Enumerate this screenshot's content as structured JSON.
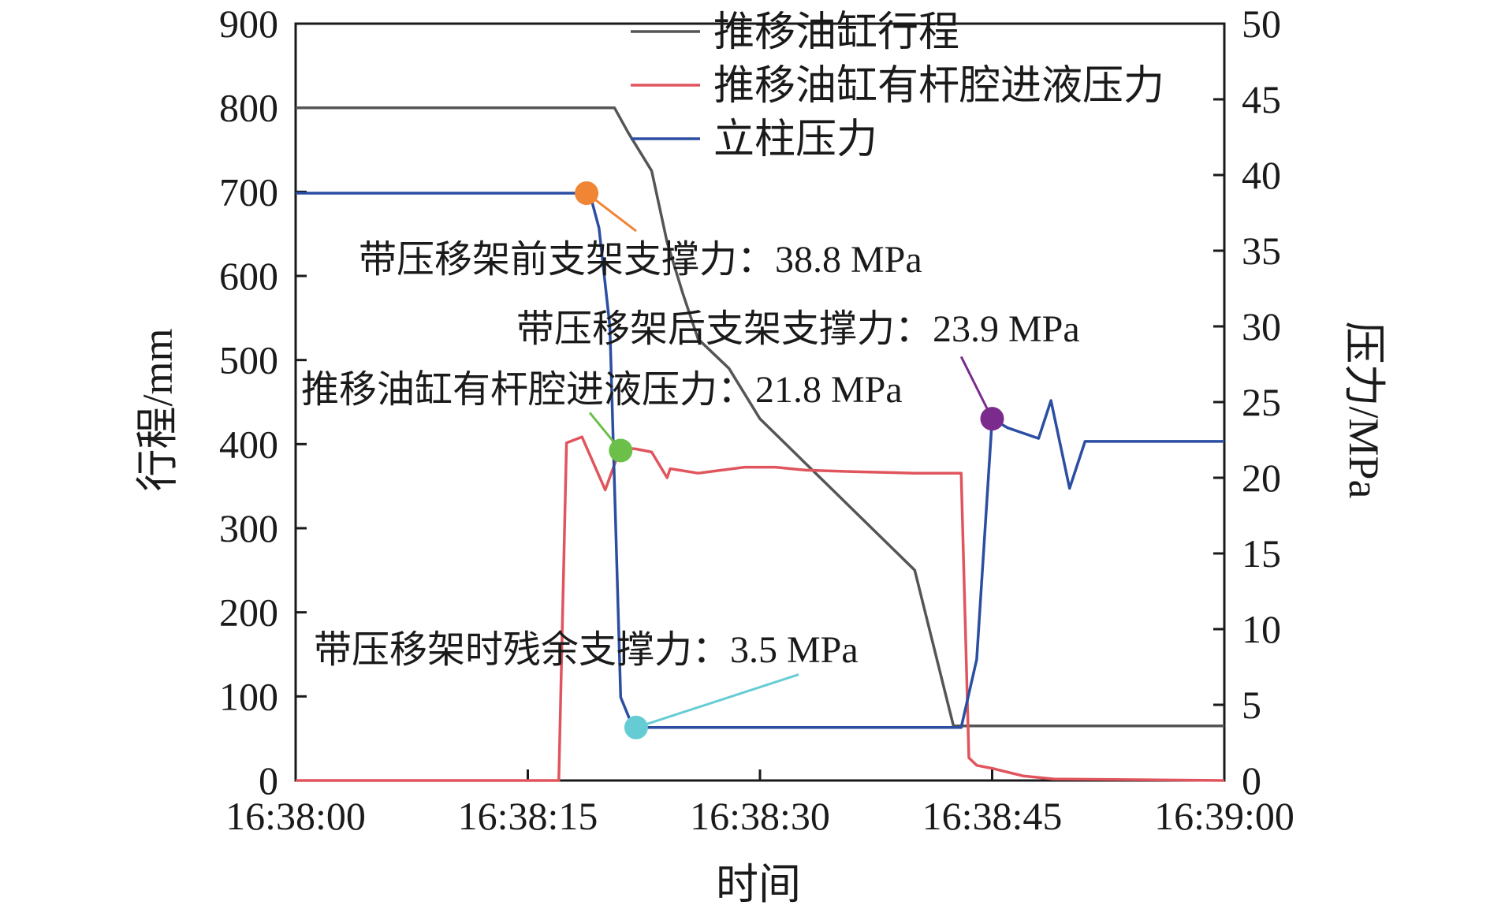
{
  "chart_data": {
    "type": "line",
    "xlabel": "时间",
    "ylabel_left": "行程/mm",
    "ylabel_right": "压力/MPa",
    "x_ticks": [
      "16:38:00",
      "16:38:15",
      "16:38:30",
      "16:38:45",
      "16:39:00"
    ],
    "xlim_seconds": [
      0,
      60
    ],
    "ylim_left": [
      0,
      900
    ],
    "yticks_left": [
      0,
      100,
      200,
      300,
      400,
      500,
      600,
      700,
      800,
      900
    ],
    "ylim_right": [
      0,
      50
    ],
    "yticks_right": [
      0,
      5,
      10,
      15,
      20,
      25,
      30,
      35,
      40,
      45,
      50
    ],
    "legend_position": "top-center",
    "series": [
      {
        "name": "推移油缸行程",
        "axis": "left",
        "color": "#555555",
        "points": [
          [
            0,
            800
          ],
          [
            20.6,
            800
          ],
          [
            21.5,
            770
          ],
          [
            23.0,
            725
          ],
          [
            24.0,
            640
          ],
          [
            25.0,
            580
          ],
          [
            26.0,
            525
          ],
          [
            28.0,
            490
          ],
          [
            30.0,
            430
          ],
          [
            35.0,
            340
          ],
          [
            40.0,
            250
          ],
          [
            42.5,
            65
          ],
          [
            60.0,
            65
          ]
        ]
      },
      {
        "name": "推移油缸有杆腔进液压力",
        "axis": "right",
        "color": "#e0555d",
        "points": [
          [
            0,
            0
          ],
          [
            17.0,
            0
          ],
          [
            17.5,
            22.3
          ],
          [
            18.5,
            22.7
          ],
          [
            20.0,
            19.2
          ],
          [
            21.0,
            22.0
          ],
          [
            22.0,
            21.9
          ],
          [
            23.0,
            21.7
          ],
          [
            24.0,
            20.0
          ],
          [
            24.2,
            20.6
          ],
          [
            26.0,
            20.3
          ],
          [
            29.0,
            20.7
          ],
          [
            31.0,
            20.7
          ],
          [
            33.0,
            20.5
          ],
          [
            36.0,
            20.4
          ],
          [
            40.0,
            20.3
          ],
          [
            43.0,
            20.3
          ],
          [
            43.5,
            1.5
          ],
          [
            44.0,
            1.0
          ],
          [
            45.0,
            0.8
          ],
          [
            47.0,
            0.3
          ],
          [
            49.0,
            0.1
          ],
          [
            60.0,
            0
          ]
        ]
      },
      {
        "name": "立柱压力",
        "axis": "right",
        "color": "#2b4ea2",
        "points": [
          [
            0,
            38.8
          ],
          [
            19.0,
            38.8
          ],
          [
            19.6,
            36.5
          ],
          [
            20.3,
            30.0
          ],
          [
            21.0,
            5.5
          ],
          [
            21.8,
            3.5
          ],
          [
            26.0,
            3.5
          ],
          [
            36.0,
            3.5
          ],
          [
            43.0,
            3.5
          ],
          [
            44.0,
            8.0
          ],
          [
            45.0,
            23.9
          ],
          [
            46.0,
            23.3
          ],
          [
            48.0,
            22.6
          ],
          [
            48.8,
            25.1
          ],
          [
            50.0,
            19.3
          ],
          [
            51.0,
            22.4
          ],
          [
            60.0,
            22.4
          ]
        ]
      }
    ],
    "annotations": [
      {
        "text": "带压移架前支架支撑力：38.8 MPa",
        "x": 18.8,
        "y": 38.8,
        "axis": "right",
        "color": "#f08535",
        "leader_to": [
          22.0,
          36.3
        ]
      },
      {
        "text": "带压移架后支架支撑力：23.9 MPa",
        "x": 45.0,
        "y": 23.9,
        "axis": "right",
        "color": "#7b2b8c",
        "leader_to": [
          43.0,
          28.0
        ]
      },
      {
        "text": "推移油缸有杆腔进液压力：21.8 MPa",
        "x": 21.0,
        "y": 21.8,
        "axis": "right",
        "color": "#6cc04a",
        "leader_to": [
          19.0,
          24.3
        ]
      },
      {
        "text": "带压移架时残余支撑力：3.5 MPa",
        "x": 22.0,
        "y": 3.5,
        "axis": "right",
        "color": "#66ccd4",
        "leader_to": [
          32.5,
          7.0
        ]
      }
    ]
  }
}
